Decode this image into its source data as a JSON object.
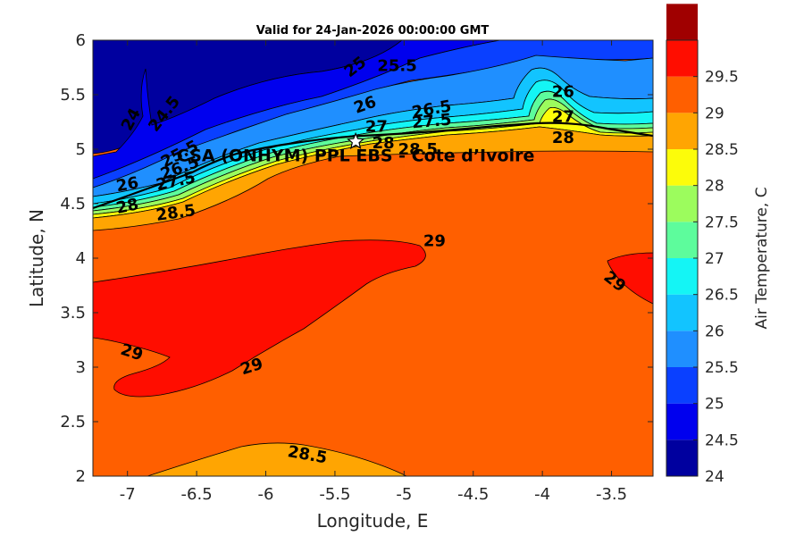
{
  "chart_data": {
    "type": "filled-contour",
    "title": "Valid for 24-Jan-2026 00:00:00 GMT",
    "xlabel": "Longitude, E",
    "ylabel": "Latitude, N",
    "xlim": [
      -7.25,
      -3.2
    ],
    "ylim": [
      2,
      6
    ],
    "xticks": [
      "-7",
      "-6.5",
      "-6",
      "-5.5",
      "-5",
      "-4.5",
      "-4",
      "-3.5"
    ],
    "xtick_values": [
      -7,
      -6.5,
      -6,
      -5.5,
      -5,
      -4.5,
      -4,
      -3.5
    ],
    "yticks": [
      "2",
      "2.5",
      "3",
      "3.5",
      "4",
      "4.5",
      "5",
      "5.5",
      "6"
    ],
    "ytick_values": [
      2,
      2.5,
      3,
      3.5,
      4,
      4.5,
      5,
      5.5,
      6
    ],
    "colorbar": {
      "label": "Air Temperature, C",
      "ticks": [
        "24",
        "24.5",
        "25",
        "25.5",
        "26",
        "26.5",
        "27",
        "27.5",
        "28",
        "28.5",
        "29",
        "29.5"
      ],
      "levels": [
        24,
        24.5,
        25,
        25.5,
        26,
        26.5,
        27,
        27.5,
        28,
        28.5,
        29,
        29.5
      ],
      "colors": [
        "#00009f",
        "#0000ee",
        "#0a40ff",
        "#1f8fff",
        "#12c4ff",
        "#14f5f5",
        "#5dfc9c",
        "#9cfc5d",
        "#fcfc0a",
        "#ffa502",
        "#ff5f00",
        "#ff0d00",
        "#a00000"
      ]
    },
    "contour_labels": [
      {
        "text": "24",
        "x": -6.97,
        "y": 5.27,
        "angle": -62
      },
      {
        "text": "24.5",
        "x": -6.73,
        "y": 5.32,
        "angle": -52
      },
      {
        "text": "25",
        "x": -5.35,
        "y": 5.75,
        "angle": -38
      },
      {
        "text": "25.5",
        "x": -5.05,
        "y": 5.76,
        "angle": 0
      },
      {
        "text": "26",
        "x": -5.28,
        "y": 5.4,
        "angle": -20
      },
      {
        "text": "26.5",
        "x": -4.8,
        "y": 5.36,
        "angle": -10
      },
      {
        "text": "27",
        "x": -5.2,
        "y": 5.2,
        "angle": 0
      },
      {
        "text": "27.5",
        "x": -4.8,
        "y": 5.25,
        "angle": -5
      },
      {
        "text": "28",
        "x": -5.15,
        "y": 5.05,
        "angle": 0
      },
      {
        "text": "28.5",
        "x": -4.9,
        "y": 4.99,
        "angle": 0
      },
      {
        "text": "26",
        "x": -3.85,
        "y": 5.52,
        "angle": 0
      },
      {
        "text": "27",
        "x": -3.85,
        "y": 5.29,
        "angle": 0
      },
      {
        "text": "28",
        "x": -3.85,
        "y": 5.1,
        "angle": 0
      },
      {
        "text": "25.5",
        "x": -6.62,
        "y": 4.95,
        "angle": -28
      },
      {
        "text": "26.5",
        "x": -6.62,
        "y": 4.82,
        "angle": -20
      },
      {
        "text": "26",
        "x": -7.0,
        "y": 4.67,
        "angle": -10
      },
      {
        "text": "27.5",
        "x": -6.65,
        "y": 4.7,
        "angle": -12
      },
      {
        "text": "28",
        "x": -7.0,
        "y": 4.47,
        "angle": -12
      },
      {
        "text": "28.5",
        "x": -6.65,
        "y": 4.41,
        "angle": -8
      },
      {
        "text": "29",
        "x": -4.78,
        "y": 4.15,
        "angle": 0
      },
      {
        "text": "29",
        "x": -3.48,
        "y": 3.78,
        "angle": 38
      },
      {
        "text": "29",
        "x": -6.97,
        "y": 3.13,
        "angle": 18
      },
      {
        "text": "29",
        "x": -6.1,
        "y": 3.0,
        "angle": -18
      },
      {
        "text": "28.5",
        "x": -5.7,
        "y": 2.19,
        "angle": 10
      }
    ],
    "site": {
      "label": "CSA (ONHYM) PPL EBS - Cote d’Ivoire",
      "lon": -5.35,
      "lat": 5.07
    },
    "grid": false,
    "legend": "colorbar-right"
  }
}
